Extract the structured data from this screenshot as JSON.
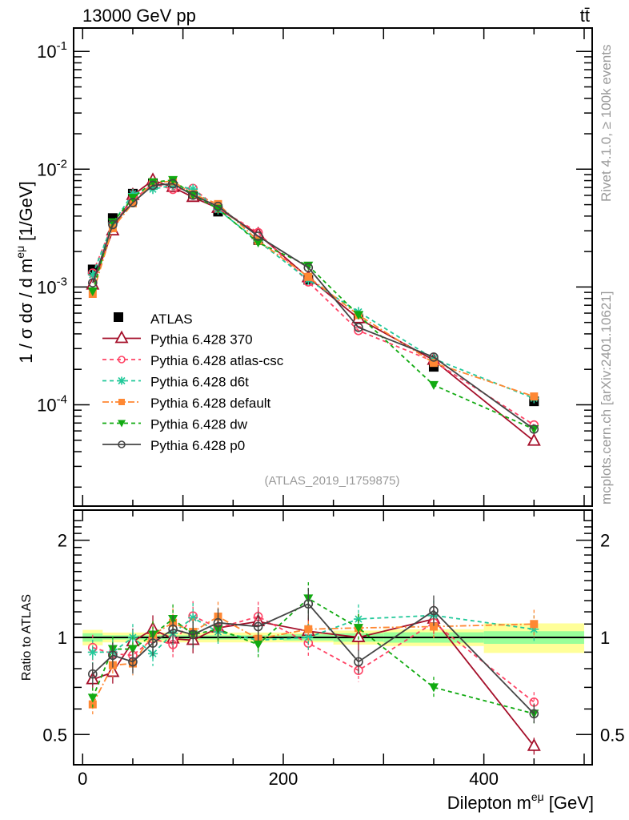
{
  "header": {
    "energy_label": "13000 GeV pp",
    "process_label": "tt̄"
  },
  "side_labels": {
    "rivet": "Rivet 4.1.0, ≥ 100k events",
    "mcplots": "mcplots.cern.ch [arXiv:2401.10621]"
  },
  "chart_data": {
    "type": "line",
    "analysis_label": "(ATLAS_2019_I1759875)",
    "ylabel": "1 / σ  dσ / d m^eμ [1/GeV]",
    "ylabel_main": "1 / σ  dσ / d m",
    "ylabel_sup": "eμ",
    "ylabel_unit": "[1/GeV]",
    "xlabel_main": "Dilepton m",
    "xlabel_sup": "eμ",
    "xlabel_unit": "[GeV]",
    "ratio_ylabel": "Ratio to ATLAS",
    "xlim": [
      -9,
      508
    ],
    "ylim": [
      1.38e-05,
      0.158
    ],
    "yscale": "log",
    "ratio_ylim": [
      0.403,
      2.48
    ],
    "ratio_yscale": "log",
    "x_ticks": [
      0,
      200,
      400
    ],
    "x_tick_labels": [
      "0",
      "200",
      "400"
    ],
    "y_ticks": [
      0.1,
      0.01,
      0.001,
      0.0001
    ],
    "y_tick_labels": [
      "10^-1",
      "10^-2",
      "10^-3",
      "10^-4"
    ],
    "ratio_ticks": [
      0.5,
      1,
      2
    ],
    "ratio_tick_labels": [
      "0.5",
      "1",
      "2"
    ],
    "legend_position": "lower-left",
    "x": [
      10,
      30,
      50,
      70,
      90,
      110,
      135,
      175,
      225,
      275,
      350,
      450
    ],
    "data": {
      "name": "ATLAS",
      "color": "#000000",
      "values": [
        0.00141,
        0.00385,
        0.0062,
        0.0076,
        0.0071,
        0.0059,
        0.00436,
        0.0025,
        0.00115,
        0.00054,
        0.00021,
        0.000107
      ]
    },
    "uncertainty_band": {
      "bin_edges": [
        0,
        20,
        200,
        250,
        300,
        400,
        500
      ],
      "stat_fraction": [
        0.03,
        0.015,
        0.022,
        0.03,
        0.037,
        0.045
      ],
      "total_fraction": [
        0.055,
        0.035,
        0.035,
        0.05,
        0.06,
        0.105
      ],
      "stat_color": "#99ff99",
      "total_color": "#ffff99"
    },
    "series": [
      {
        "name": "Pythia 6.428 370",
        "color": "#a50f2a",
        "dash": "",
        "marker": "triangle-open",
        "ratio": [
          0.74,
          0.78,
          0.97,
          1.06,
          0.99,
          0.98,
          1.07,
          1.12,
          1.045,
          1.0,
          1.14,
          0.46
        ]
      },
      {
        "name": "Pythia 6.428 atlas-csc",
        "color": "#ff4466",
        "dash": "5,4",
        "marker": "circle-open",
        "ratio": [
          0.93,
          0.89,
          0.88,
          0.99,
          0.95,
          1.165,
          1.07,
          1.16,
          0.96,
          0.79,
          1.11,
          0.63
        ]
      },
      {
        "name": "Pythia 6.428 d6t",
        "color": "#22c99a",
        "dash": "5,4",
        "marker": "asterisk",
        "ratio": [
          0.9,
          0.9,
          1.0,
          0.89,
          1.03,
          1.15,
          1.04,
          0.98,
          1.0,
          1.14,
          1.17,
          1.06
        ]
      },
      {
        "name": "Pythia 6.428 default",
        "color": "#ff8833",
        "dash": "8,3,2,3",
        "marker": "square-filled",
        "ratio": [
          0.62,
          0.82,
          0.83,
          1.02,
          1.11,
          1.04,
          1.16,
          0.99,
          1.06,
          1.07,
          1.08,
          1.1
        ]
      },
      {
        "name": "Pythia 6.428 dw",
        "color": "#11aa11",
        "dash": "5,4",
        "marker": "triangle-down-filled",
        "ratio": [
          0.65,
          0.92,
          0.92,
          1.02,
          1.14,
          1.02,
          1.06,
          0.95,
          1.32,
          1.07,
          0.7,
          0.58
        ]
      },
      {
        "name": "Pythia 6.428 p0",
        "color": "#444444",
        "dash": "",
        "marker": "circle-open",
        "ratio": [
          0.77,
          0.88,
          0.84,
          0.96,
          1.06,
          1.02,
          1.11,
          1.08,
          1.27,
          0.84,
          1.21,
          0.58
        ]
      }
    ]
  }
}
